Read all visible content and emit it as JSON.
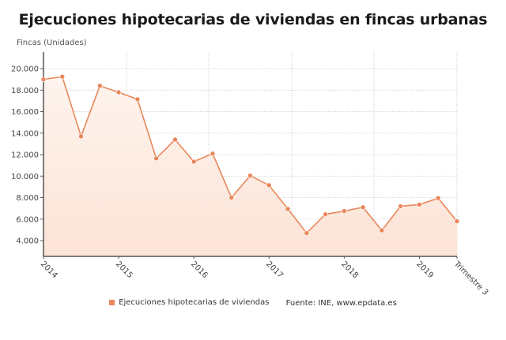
{
  "title": "Ejecuciones hipotecarias de viviendas en fincas urbanas",
  "y_axis_label": "Fincas (Unidades)",
  "legend": {
    "series_label": "Ejecuciones hipotecarias de viviendas",
    "source": "Fuente: INE, www.epdata.es"
  },
  "colors": {
    "line": "#E8875A",
    "fill_top": "#FEF4EE",
    "fill_bottom": "#FCE3D6",
    "grid": "#cccccc",
    "axis": "#555555"
  },
  "chart_data": {
    "type": "area",
    "title": "Ejecuciones hipotecarias de viviendas en fincas urbanas",
    "xlabel": "",
    "ylabel": "Fincas (Unidades)",
    "ylim": [
      2500,
      21500
    ],
    "yticks": [
      4000,
      6000,
      8000,
      10000,
      12000,
      14000,
      16000,
      18000,
      20000
    ],
    "ytick_labels": [
      "4.000",
      "6.000",
      "8.000",
      "10.000",
      "12.000",
      "14.000",
      "16.000",
      "18.000",
      "20.000"
    ],
    "xtick_labels": [
      {
        "label": "2014",
        "index": 0
      },
      {
        "label": "2015",
        "index": 4
      },
      {
        "label": "2016",
        "index": 8
      },
      {
        "label": "2017",
        "index": 12
      },
      {
        "label": "2018",
        "index": 16
      },
      {
        "label": "2019",
        "index": 20
      },
      {
        "label": "Trimestre 3",
        "index": 22
      }
    ],
    "grid": true,
    "legend_position": "bottom",
    "categories": [
      "2014 T1",
      "2014 T2",
      "2014 T3",
      "2014 T4",
      "2015 T1",
      "2015 T2",
      "2015 T3",
      "2015 T4",
      "2016 T1",
      "2016 T2",
      "2016 T3",
      "2016 T4",
      "2017 T1",
      "2017 T2",
      "2017 T3",
      "2017 T4",
      "2018 T1",
      "2018 T2",
      "2018 T3",
      "2018 T4",
      "2019 T1",
      "2019 T2",
      "2019 T3"
    ],
    "series": [
      {
        "name": "Ejecuciones hipotecarias de viviendas",
        "values": [
          19000,
          19250,
          13700,
          18400,
          17800,
          17150,
          11650,
          13400,
          11350,
          12100,
          8000,
          10050,
          9150,
          6950,
          4700,
          6450,
          6750,
          7100,
          4950,
          7200,
          7350,
          7950,
          5800
        ]
      }
    ]
  }
}
